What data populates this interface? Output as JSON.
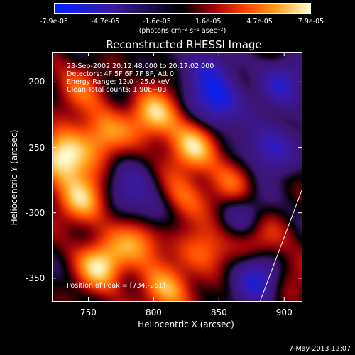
{
  "colorbar": {
    "ticks": [
      "-7.9e-05",
      "-4.7e-05",
      "-1.6e-05",
      "1.6e-05",
      "4.7e-05",
      "7.9e-05"
    ],
    "unit": "(photons cm⁻² s⁻¹ asec⁻²)",
    "min": -7.9e-05,
    "max": 7.9e-05
  },
  "annotations": {
    "line1": "23-Sep-2002 20:12:48.000 to 20:17:02.000",
    "line2": "Detectors: 4F 5F 6F 7F 8F, Att 0",
    "line3": "Energy Range: 12.0 - 25.0 keV",
    "line4": "Clean     Total counts: 1.90E+03",
    "peak": "Position of Peak = [734,-261]"
  },
  "footer": {
    "timestamp": "7-May-2013 12:07"
  },
  "chart_data": {
    "type": "heatmap",
    "title": "Reconstructed RHESSI Image",
    "xlabel": "Heliocentric X (arcsec)",
    "ylabel": "Heliocentric Y (arcsec)",
    "xlim": [
      722,
      914
    ],
    "ylim": [
      -368,
      -177
    ],
    "xticks": [
      750,
      800,
      850,
      900
    ],
    "yticks": [
      -200,
      -250,
      -300,
      -350
    ],
    "grid": false,
    "peak": [
      734,
      -261
    ],
    "hotspots": [
      {
        "x": 730,
        "y": -258,
        "v": 1.0
      },
      {
        "x": 760,
        "y": -240,
        "v": 0.7
      },
      {
        "x": 745,
        "y": -290,
        "v": 0.8
      },
      {
        "x": 790,
        "y": -320,
        "v": 0.75
      },
      {
        "x": 760,
        "y": -340,
        "v": 0.9
      },
      {
        "x": 800,
        "y": -225,
        "v": 0.85
      },
      {
        "x": 830,
        "y": -250,
        "v": 0.8
      },
      {
        "x": 820,
        "y": -290,
        "v": 0.6
      },
      {
        "x": 860,
        "y": -280,
        "v": 0.5
      },
      {
        "x": 880,
        "y": -320,
        "v": 0.5
      },
      {
        "x": 740,
        "y": -205,
        "v": 0.45
      },
      {
        "x": 810,
        "y": -360,
        "v": 0.7
      },
      {
        "x": 900,
        "y": -350,
        "v": 0.4
      },
      {
        "x": 840,
        "y": -330,
        "v": 0.55
      }
    ],
    "coldspots": [
      {
        "x": 850,
        "y": -215,
        "v": -0.8
      },
      {
        "x": 890,
        "y": -250,
        "v": -0.7
      },
      {
        "x": 880,
        "y": -350,
        "v": -0.9
      },
      {
        "x": 800,
        "y": -300,
        "v": -0.55
      },
      {
        "x": 780,
        "y": -280,
        "v": -0.4
      },
      {
        "x": 870,
        "y": -300,
        "v": -0.5
      },
      {
        "x": 840,
        "y": -190,
        "v": -0.5
      },
      {
        "x": 900,
        "y": -200,
        "v": -0.6
      }
    ],
    "limb_line": {
      "x1": 882,
      "y1": -368,
      "x2": 914,
      "y2": -283
    }
  }
}
